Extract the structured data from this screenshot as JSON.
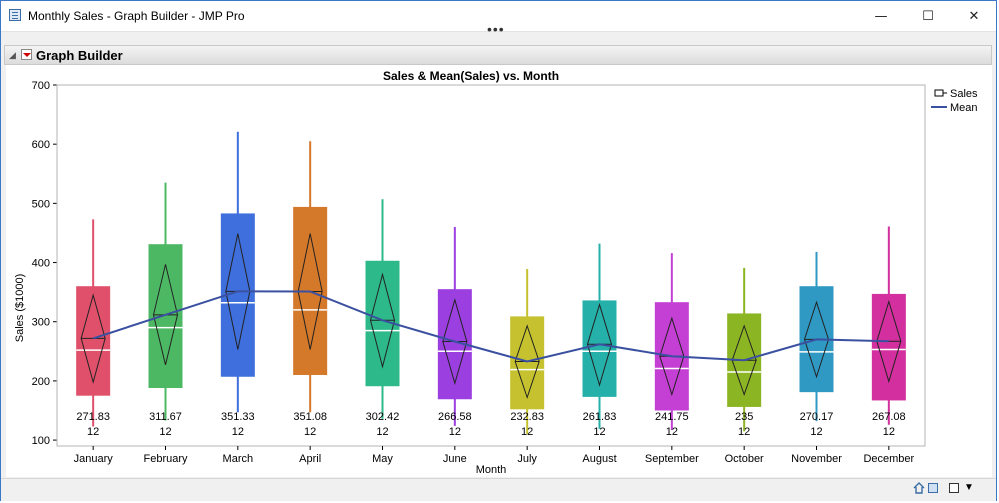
{
  "window": {
    "title": "Monthly Sales - Graph Builder - JMP Pro",
    "minimize_glyph": "—",
    "maximize_glyph": "☐",
    "close_glyph": "✕",
    "grip_glyph": "•••"
  },
  "section": {
    "title": "Graph Builder",
    "disclosure_glyph": "◢"
  },
  "status": {
    "caret_glyph": "▼"
  },
  "chart_data": {
    "type": "box",
    "title": "Sales & Mean(Sales) vs. Month",
    "xlabel": "Month",
    "ylabel": "Sales ($1000)",
    "ylim": [
      90,
      700
    ],
    "yticks": [
      100,
      200,
      300,
      400,
      500,
      600,
      700
    ],
    "legend": {
      "position": "top-right",
      "box_label": "Sales",
      "line_label": "Mean"
    },
    "categories": [
      "January",
      "February",
      "March",
      "April",
      "May",
      "June",
      "July",
      "August",
      "September",
      "October",
      "November",
      "December"
    ],
    "colors": [
      "#e0506a",
      "#4db863",
      "#3f6fdc",
      "#d4782a",
      "#2eb98a",
      "#9b3fe0",
      "#c6c22f",
      "#25b1aa",
      "#c43fd4",
      "#8cb524",
      "#2f99c4",
      "#d42f9e"
    ],
    "boxes": [
      {
        "min": 123,
        "q1": 175,
        "median": 252,
        "q3": 360,
        "max": 473
      },
      {
        "min": 133,
        "q1": 188,
        "median": 290,
        "q3": 431,
        "max": 535
      },
      {
        "min": 147,
        "q1": 207,
        "median": 332,
        "q3": 483,
        "max": 621
      },
      {
        "min": 147,
        "q1": 210,
        "median": 320,
        "q3": 494,
        "max": 605
      },
      {
        "min": 136,
        "q1": 191,
        "median": 285,
        "q3": 403,
        "max": 507
      },
      {
        "min": 124,
        "q1": 169,
        "median": 250,
        "q3": 355,
        "max": 460
      },
      {
        "min": 110,
        "q1": 152,
        "median": 219,
        "q3": 309,
        "max": 389
      },
      {
        "min": 119,
        "q1": 173,
        "median": 250,
        "q3": 336,
        "max": 432
      },
      {
        "min": 117,
        "q1": 150,
        "median": 221,
        "q3": 333,
        "max": 416
      },
      {
        "min": 115,
        "q1": 156,
        "median": 215,
        "q3": 314,
        "max": 391
      },
      {
        "min": 132,
        "q1": 181,
        "median": 249,
        "q3": 360,
        "max": 418
      },
      {
        "min": 126,
        "q1": 167,
        "median": 253,
        "q3": 347,
        "max": 461
      }
    ],
    "diamonds": [
      {
        "upper": 345,
        "lower": 198
      },
      {
        "upper": 397,
        "lower": 227
      },
      {
        "upper": 449,
        "lower": 253
      },
      {
        "upper": 449,
        "lower": 253
      },
      {
        "upper": 380,
        "lower": 224
      },
      {
        "upper": 337,
        "lower": 196
      },
      {
        "upper": 293,
        "lower": 172
      },
      {
        "upper": 329,
        "lower": 193
      },
      {
        "upper": 306,
        "lower": 177
      },
      {
        "upper": 293,
        "lower": 177
      },
      {
        "upper": 333,
        "lower": 207
      },
      {
        "upper": 334,
        "lower": 199
      }
    ],
    "mean": [
      271.83,
      311.67,
      351.33,
      351.08,
      302.42,
      266.58,
      232.83,
      261.83,
      241.75,
      235,
      270.17,
      267.08
    ],
    "mean_labels": [
      "271.83",
      "311.67",
      "351.33",
      "351.08",
      "302.42",
      "266.58",
      "232.83",
      "261.83",
      "241.75",
      "235",
      "270.17",
      "267.08"
    ],
    "counts": [
      "12",
      "12",
      "12",
      "12",
      "12",
      "12",
      "12",
      "12",
      "12",
      "12",
      "12",
      "12"
    ]
  }
}
